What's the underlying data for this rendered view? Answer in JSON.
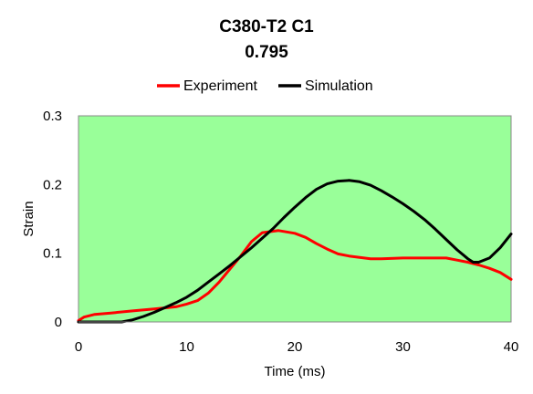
{
  "chart_data": {
    "type": "line",
    "title": "C380-T2 C1",
    "subtitle": "0.795",
    "xlabel": "Time (ms)",
    "ylabel": "Strain",
    "xlim": [
      0,
      40
    ],
    "ylim": [
      0,
      0.3
    ],
    "xticks": [
      0,
      10,
      20,
      30,
      40
    ],
    "yticks": [
      0,
      0.1,
      0.2,
      0.3
    ],
    "xtick_labels": [
      "0",
      "10",
      "20",
      "30",
      "40"
    ],
    "ytick_labels": [
      "0",
      "0.1",
      "0.2",
      "0.3"
    ],
    "grid": false,
    "legend_position": "top",
    "plot_background": "#99ff99",
    "series": [
      {
        "name": "Experiment",
        "color": "#ff0000",
        "x": [
          0,
          0.5,
          1.5,
          3,
          5,
          7,
          9,
          10,
          11,
          12,
          13,
          14,
          15,
          16,
          17,
          18.5,
          20,
          21,
          22,
          23,
          24,
          25,
          26,
          27,
          28,
          30,
          32,
          34,
          35,
          36,
          37,
          38,
          39,
          40
        ],
        "y": [
          0.002,
          0.007,
          0.011,
          0.013,
          0.016,
          0.019,
          0.022,
          0.026,
          0.031,
          0.042,
          0.058,
          0.077,
          0.096,
          0.117,
          0.13,
          0.133,
          0.129,
          0.123,
          0.114,
          0.106,
          0.099,
          0.096,
          0.094,
          0.092,
          0.092,
          0.093,
          0.093,
          0.093,
          0.09,
          0.087,
          0.083,
          0.078,
          0.072,
          0.062
        ]
      },
      {
        "name": "Simulation",
        "color": "#000000",
        "x": [
          0,
          2,
          4,
          5,
          6,
          7,
          8,
          9,
          10,
          11,
          12,
          13,
          14,
          15,
          16,
          17,
          18,
          19,
          20,
          21,
          22,
          23,
          24,
          25,
          26,
          27,
          28,
          29,
          30,
          31,
          32,
          33,
          34,
          35,
          36,
          36.5,
          37,
          38,
          39,
          40
        ],
        "y": [
          0,
          0,
          0,
          0.003,
          0.008,
          0.014,
          0.021,
          0.028,
          0.036,
          0.046,
          0.058,
          0.07,
          0.082,
          0.095,
          0.108,
          0.122,
          0.136,
          0.152,
          0.167,
          0.181,
          0.193,
          0.201,
          0.205,
          0.206,
          0.204,
          0.199,
          0.191,
          0.182,
          0.172,
          0.161,
          0.149,
          0.135,
          0.12,
          0.105,
          0.092,
          0.087,
          0.087,
          0.093,
          0.108,
          0.128
        ]
      }
    ]
  }
}
